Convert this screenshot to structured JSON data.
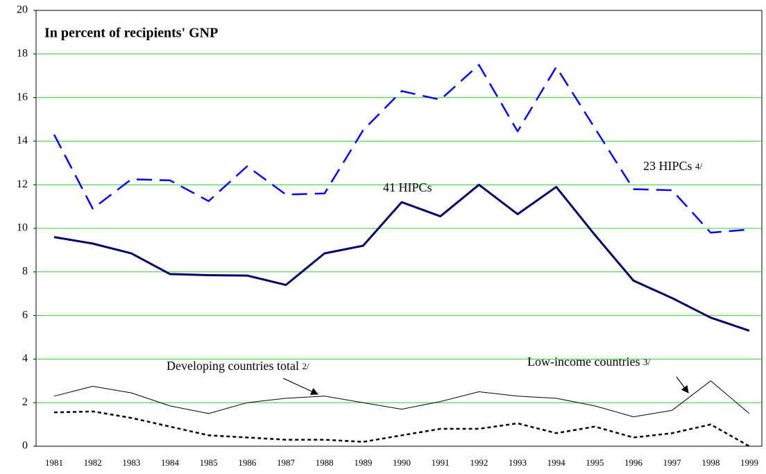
{
  "chart_data": {
    "type": "line",
    "title": "In percent of recipients' GNP",
    "categories": [
      "1981",
      "1982",
      "1983",
      "1984",
      "1985",
      "1986",
      "1987",
      "1988",
      "1989",
      "1990",
      "1991",
      "1992",
      "1993",
      "1994",
      "1995",
      "1996",
      "1997",
      "1998",
      "1999"
    ],
    "ylim": [
      0,
      20
    ],
    "yticks": [
      0,
      2,
      4,
      6,
      8,
      10,
      12,
      14,
      16,
      18,
      20
    ],
    "grid": true,
    "grid_color": "#33cc33",
    "series": [
      {
        "name": "41 HIPCs",
        "color": "#000066",
        "style": "solid",
        "width": 3,
        "values": [
          9.6,
          9.3,
          8.85,
          7.9,
          7.85,
          7.83,
          7.4,
          8.85,
          9.2,
          11.2,
          10.55,
          12.0,
          10.65,
          11.9,
          9.7,
          7.6,
          6.8,
          5.9,
          5.3
        ]
      },
      {
        "name": "23 HIPCs",
        "footnote": "4/",
        "color": "#0000ff",
        "style": "dashed",
        "width": 2.5,
        "values": [
          14.3,
          10.9,
          12.25,
          12.2,
          11.25,
          12.85,
          11.55,
          11.6,
          14.5,
          16.3,
          15.9,
          17.5,
          14.45,
          17.4,
          14.6,
          11.8,
          11.75,
          9.8,
          9.95
        ]
      },
      {
        "name": "Low-income countries",
        "footnote": "3/",
        "color": "#000000",
        "style": "solid",
        "width": 1,
        "values": [
          2.3,
          2.75,
          2.45,
          1.85,
          1.5,
          2.0,
          2.2,
          2.3,
          2.0,
          1.7,
          2.05,
          2.5,
          2.3,
          2.2,
          1.85,
          1.35,
          1.65,
          3.0,
          1.5
        ]
      },
      {
        "name": "Developing countries total",
        "footnote": "2/",
        "color": "#000000",
        "style": "dotted",
        "width": 2.5,
        "values": [
          1.55,
          1.6,
          1.3,
          0.9,
          0.5,
          0.4,
          0.3,
          0.3,
          0.2,
          0.5,
          0.8,
          0.8,
          1.05,
          0.6,
          0.9,
          0.4,
          0.6,
          1.0,
          0
        ]
      }
    ]
  }
}
